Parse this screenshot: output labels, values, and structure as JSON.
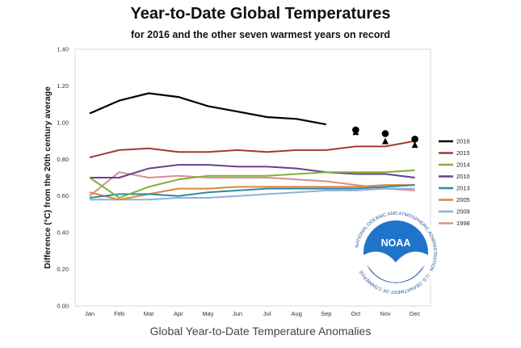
{
  "header": {
    "title": "Year-to-Date Global Temperatures",
    "subtitle": "for 2016 and the other seven warmest years on record"
  },
  "caption": "Global Year-to-Date Temperature Anomalies",
  "logo": {
    "text": "NOAA",
    "ring_text": "NATIONAL OCEANIC AND ATMOSPHERIC ADMINISTRATION · U.S. DEPARTMENT OF COMMERCE"
  },
  "chart_data": {
    "type": "line",
    "ylabel": "Difference (°C) from the 20th century average",
    "xlabel": "",
    "ylim": [
      0,
      1.4
    ],
    "yticks": [
      "0.00",
      "0.20",
      "0.40",
      "0.60",
      "0.80",
      "1.00",
      "1.20",
      "1.40"
    ],
    "yticks_values": [
      0,
      0.2,
      0.4,
      0.6,
      0.8,
      1.0,
      1.2,
      1.4
    ],
    "categories": [
      "Jan",
      "Feb",
      "Mar",
      "Apr",
      "May",
      "Jun",
      "Jul",
      "Aug",
      "Sep",
      "Oct",
      "Nov",
      "Dec"
    ],
    "grid": false,
    "legend_position": "right",
    "series": [
      {
        "name": "2016",
        "color": "#000000",
        "values": [
          1.05,
          1.12,
          1.16,
          1.14,
          1.09,
          1.06,
          1.03,
          1.02,
          0.99,
          null,
          null,
          null
        ]
      },
      {
        "name": "2015",
        "color": "#a33a33",
        "values": [
          0.81,
          0.85,
          0.86,
          0.84,
          0.84,
          0.85,
          0.84,
          0.85,
          0.85,
          0.87,
          0.87,
          0.9
        ]
      },
      {
        "name": "2014",
        "color": "#80b03c",
        "values": [
          0.7,
          0.59,
          0.65,
          0.69,
          0.71,
          0.71,
          0.71,
          0.72,
          0.73,
          0.73,
          0.73,
          0.74
        ]
      },
      {
        "name": "2010",
        "color": "#6a3f92",
        "values": [
          0.7,
          0.7,
          0.75,
          0.77,
          0.77,
          0.76,
          0.76,
          0.75,
          0.73,
          0.72,
          0.72,
          0.7
        ]
      },
      {
        "name": "2013",
        "color": "#2e8aa7",
        "values": [
          0.59,
          0.61,
          0.61,
          0.6,
          0.62,
          0.63,
          0.64,
          0.64,
          0.64,
          0.64,
          0.65,
          0.66
        ]
      },
      {
        "name": "2005",
        "color": "#e0843a",
        "values": [
          0.62,
          0.58,
          0.61,
          0.64,
          0.64,
          0.65,
          0.65,
          0.65,
          0.65,
          0.65,
          0.66,
          0.66
        ]
      },
      {
        "name": "2009",
        "color": "#8fb0d8",
        "values": [
          0.58,
          0.58,
          0.58,
          0.59,
          0.59,
          0.6,
          0.61,
          0.62,
          0.63,
          0.63,
          0.64,
          0.64
        ]
      },
      {
        "name": "1998",
        "color": "#d98f8f",
        "values": [
          0.6,
          0.73,
          0.7,
          0.71,
          0.7,
          0.7,
          0.7,
          0.69,
          0.68,
          0.66,
          0.64,
          0.63
        ]
      }
    ],
    "markers": {
      "circles": [
        {
          "x": "Oct",
          "y": 0.96
        },
        {
          "x": "Nov",
          "y": 0.94
        },
        {
          "x": "Dec",
          "y": 0.91
        }
      ],
      "triangles": [
        {
          "x": "Oct",
          "y": 0.95
        },
        {
          "x": "Nov",
          "y": 0.9
        },
        {
          "x": "Dec",
          "y": 0.88
        }
      ]
    }
  }
}
